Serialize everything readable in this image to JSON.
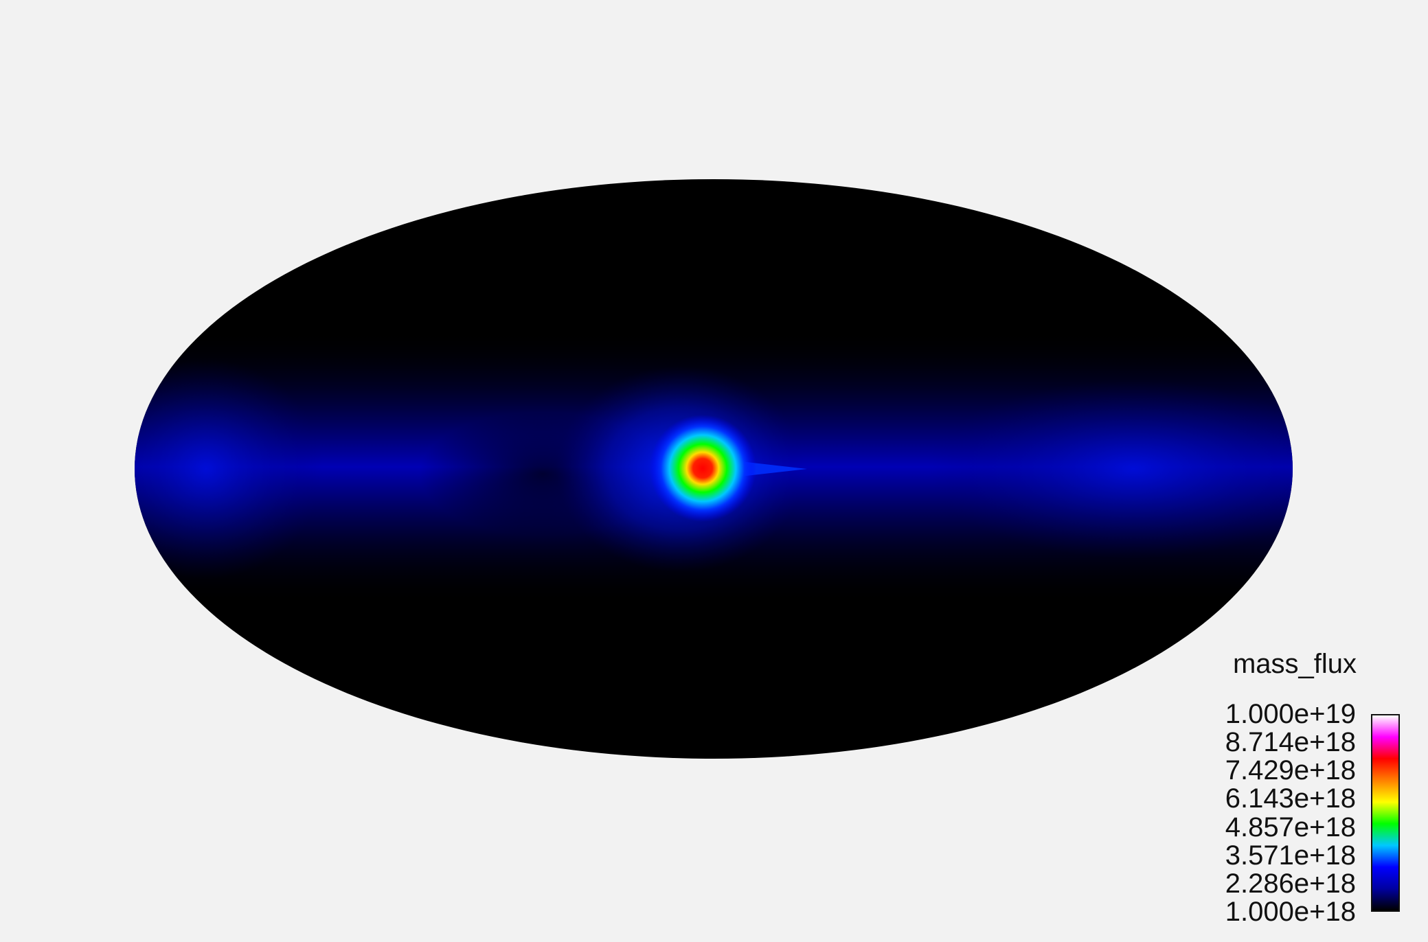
{
  "chart_data": {
    "type": "heatmap",
    "projection": "mollweide",
    "colormap": "rainbow",
    "background_color": "#000000",
    "page_background": "#f2f2f2",
    "colorbar": {
      "title": "mass_flux",
      "range": [
        1e+18,
        1e+19
      ],
      "tick_labels": [
        "1.000e+19",
        "8.714e+18",
        "7.429e+18",
        "6.143e+18",
        "4.857e+18",
        "3.571e+18",
        "2.286e+18",
        "1.000e+18"
      ],
      "colors": [
        "#000000",
        "#0000a0",
        "#0000ff",
        "#00c8ff",
        "#00ff00",
        "#ffff00",
        "#ff8000",
        "#ff0000",
        "#ff00ff",
        "#ffffff"
      ]
    },
    "features": [
      {
        "name": "peak",
        "lon": -5,
        "lat": 0,
        "value": 7.8e+18
      },
      {
        "name": "equatorial band",
        "lat_range": [
          -25,
          25
        ],
        "value": 1.8e+18
      }
    ]
  }
}
